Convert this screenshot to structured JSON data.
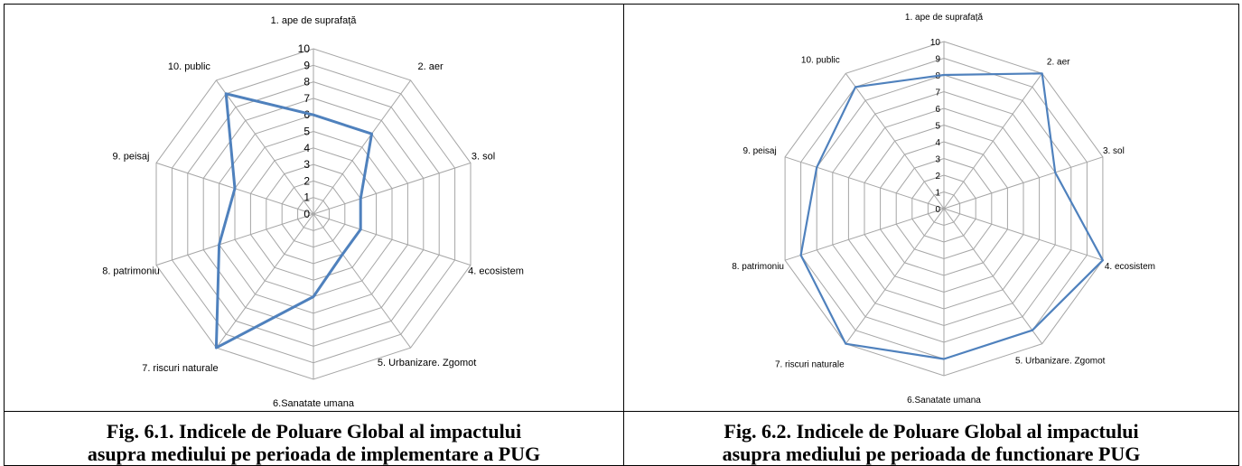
{
  "chart_data": [
    {
      "type": "radar",
      "categories": [
        "1. ape de suprafață",
        "2. aer",
        "3. sol",
        "4. ecosistem",
        "5. Urbanizare. Zgomot",
        "6.Sanatate umana",
        "7. riscuri naturale",
        "8. patrimoniu",
        "9. peisaj",
        "10. public"
      ],
      "values": [
        6,
        6,
        3,
        3,
        3,
        5,
        10,
        6,
        5,
        9
      ],
      "ticks": [
        "0",
        "1",
        "2",
        "3",
        "4",
        "5",
        "6",
        "7",
        "8",
        "9",
        "10"
      ],
      "rlim": [
        0,
        10
      ],
      "grid": true,
      "series_color": "#4f81bd"
    },
    {
      "type": "radar",
      "categories": [
        "1. ape de suprafață",
        "2. aer",
        "3. sol",
        "4. ecosistem",
        "5. Urbanizare. Zgomot",
        "6.Sanatate umana",
        "7. riscuri naturale",
        "8. patrimoniu",
        "9. peisaj",
        "10. public"
      ],
      "values": [
        8,
        10,
        7,
        10,
        9,
        9,
        10,
        9,
        8,
        9
      ],
      "ticks": [
        "0",
        "1",
        "2",
        "3",
        "4",
        "5",
        "6",
        "7",
        "8",
        "9",
        "10"
      ],
      "rlim": [
        0,
        10
      ],
      "grid": true,
      "series_color": "#4f81bd"
    }
  ],
  "captions": [
    {
      "line1": "Fig. 6.1. Indicele de Poluare Global al impactului",
      "line2": "asupra mediului pe perioada de implementare a PUG"
    },
    {
      "line1": "Fig. 6.2. Indicele de Poluare Global al impactului",
      "line2": "asupra mediului pe perioada de functionare PUG"
    }
  ]
}
